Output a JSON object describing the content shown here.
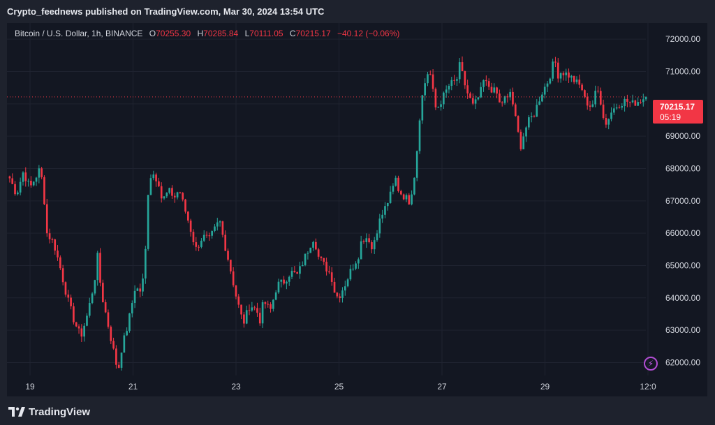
{
  "header": {
    "publisher_text": "Crypto_feednews published on TradingView.com, Mar 30, 2024 13:54 UTC"
  },
  "legend": {
    "symbol": "Bitcoin / U.S. Dollar, 1h, BINANCE",
    "open_label": "O",
    "open": "70255.30",
    "high_label": "H",
    "high": "70285.84",
    "low_label": "L",
    "low": "70111.05",
    "close_label": "C",
    "close": "70215.17",
    "change": "−40.12 (−0.06%)"
  },
  "last_price": {
    "price": "70215.17",
    "countdown": "05:19"
  },
  "brand": {
    "name": "TradingView",
    "logo_icon": "tradingview-logo-icon"
  },
  "colors": {
    "up": "#26a69a",
    "down": "#f23645",
    "background": "#131722",
    "grid": "#1f2330",
    "axis_text": "#d1d4dc"
  },
  "chart_data": {
    "type": "candlestick",
    "title": "Bitcoin / U.S. Dollar, 1h, BINANCE",
    "y_ticks": [
      "62000.00",
      "63000.00",
      "64000.00",
      "65000.00",
      "66000.00",
      "67000.00",
      "68000.00",
      "69000.00",
      "70000.00",
      "71000.00",
      "72000.00"
    ],
    "x_ticks": [
      "19",
      "21",
      "23",
      "25",
      "27",
      "29",
      "12:0"
    ],
    "ylim": [
      61600,
      72500
    ],
    "last_close": 70215.17,
    "grid": true,
    "series": [
      {
        "x": 0,
        "close": 67700
      },
      {
        "x": 2,
        "close": 67200
      },
      {
        "x": 4,
        "close": 67900
      },
      {
        "x": 6,
        "close": 67400
      },
      {
        "x": 8,
        "close": 67800
      },
      {
        "x": 9,
        "close": 68000
      },
      {
        "x": 10,
        "close": 67300
      },
      {
        "x": 11,
        "close": 66000
      },
      {
        "x": 13,
        "close": 65700
      },
      {
        "x": 15,
        "close": 64900
      },
      {
        "x": 17,
        "close": 64000
      },
      {
        "x": 19,
        "close": 63300
      },
      {
        "x": 21,
        "close": 62800
      },
      {
        "x": 23,
        "close": 63500
      },
      {
        "x": 25,
        "close": 64500
      },
      {
        "x": 26,
        "close": 65300
      },
      {
        "x": 27,
        "close": 64200
      },
      {
        "x": 29,
        "close": 63200
      },
      {
        "x": 31,
        "close": 62200
      },
      {
        "x": 32,
        "close": 61700
      },
      {
        "x": 33,
        "close": 62400
      },
      {
        "x": 35,
        "close": 63200
      },
      {
        "x": 37,
        "close": 64300
      },
      {
        "x": 39,
        "close": 64200
      },
      {
        "x": 40,
        "close": 65200
      },
      {
        "x": 41,
        "close": 67500
      },
      {
        "x": 42,
        "close": 67900
      },
      {
        "x": 44,
        "close": 67600
      },
      {
        "x": 45,
        "close": 67000
      },
      {
        "x": 47,
        "close": 67300
      },
      {
        "x": 49,
        "close": 67100
      },
      {
        "x": 50,
        "close": 67400
      },
      {
        "x": 51,
        "close": 67000
      },
      {
        "x": 53,
        "close": 66300
      },
      {
        "x": 55,
        "close": 65500
      },
      {
        "x": 57,
        "close": 65900
      },
      {
        "x": 59,
        "close": 65800
      },
      {
        "x": 61,
        "close": 66200
      },
      {
        "x": 62,
        "close": 66400
      },
      {
        "x": 63,
        "close": 65900
      },
      {
        "x": 65,
        "close": 65000
      },
      {
        "x": 67,
        "close": 64000
      },
      {
        "x": 69,
        "close": 63200
      },
      {
        "x": 71,
        "close": 63800
      },
      {
        "x": 73,
        "close": 63600
      },
      {
        "x": 74,
        "close": 63300
      },
      {
        "x": 75,
        "close": 63900
      },
      {
        "x": 77,
        "close": 63600
      },
      {
        "x": 79,
        "close": 64400
      },
      {
        "x": 81,
        "close": 64500
      },
      {
        "x": 83,
        "close": 64800
      },
      {
        "x": 85,
        "close": 64700
      },
      {
        "x": 87,
        "close": 65200
      },
      {
        "x": 89,
        "close": 65700
      },
      {
        "x": 90,
        "close": 65900
      },
      {
        "x": 91,
        "close": 65300
      },
      {
        "x": 93,
        "close": 65000
      },
      {
        "x": 95,
        "close": 64700
      },
      {
        "x": 96,
        "close": 64200
      },
      {
        "x": 97,
        "close": 64000
      },
      {
        "x": 99,
        "close": 64400
      },
      {
        "x": 101,
        "close": 64900
      },
      {
        "x": 103,
        "close": 65300
      },
      {
        "x": 104,
        "close": 65800
      },
      {
        "x": 106,
        "close": 65900
      },
      {
        "x": 107,
        "close": 65500
      },
      {
        "x": 109,
        "close": 66300
      },
      {
        "x": 111,
        "close": 66800
      },
      {
        "x": 113,
        "close": 67300
      },
      {
        "x": 114,
        "close": 67700
      },
      {
        "x": 115,
        "close": 67300
      },
      {
        "x": 117,
        "close": 67100
      },
      {
        "x": 118,
        "close": 67000
      },
      {
        "x": 119,
        "close": 67400
      },
      {
        "x": 120,
        "close": 68100
      },
      {
        "x": 121,
        "close": 69500
      },
      {
        "x": 122,
        "close": 70300
      },
      {
        "x": 123,
        "close": 70800
      },
      {
        "x": 124,
        "close": 71100
      },
      {
        "x": 125,
        "close": 70400
      },
      {
        "x": 126,
        "close": 69800
      },
      {
        "x": 128,
        "close": 70200
      },
      {
        "x": 130,
        "close": 70600
      },
      {
        "x": 132,
        "close": 70700
      },
      {
        "x": 133,
        "close": 71200
      },
      {
        "x": 134,
        "close": 70800
      },
      {
        "x": 135,
        "close": 70400
      },
      {
        "x": 137,
        "close": 69900
      },
      {
        "x": 139,
        "close": 70300
      },
      {
        "x": 140,
        "close": 70700
      },
      {
        "x": 142,
        "close": 70500
      },
      {
        "x": 144,
        "close": 70300
      },
      {
        "x": 145,
        "close": 69900
      },
      {
        "x": 146,
        "close": 70200
      },
      {
        "x": 147,
        "close": 70100
      },
      {
        "x": 148,
        "close": 70400
      },
      {
        "x": 149,
        "close": 69800
      },
      {
        "x": 150,
        "close": 69200
      },
      {
        "x": 151,
        "close": 68700
      },
      {
        "x": 152,
        "close": 69100
      },
      {
        "x": 153,
        "close": 69400
      },
      {
        "x": 155,
        "close": 69700
      },
      {
        "x": 157,
        "close": 70300
      },
      {
        "x": 159,
        "close": 70700
      },
      {
        "x": 160,
        "close": 71000
      },
      {
        "x": 161,
        "close": 71400
      },
      {
        "x": 162,
        "close": 70900
      },
      {
        "x": 163,
        "close": 71000
      },
      {
        "x": 165,
        "close": 70900
      },
      {
        "x": 167,
        "close": 70700
      },
      {
        "x": 169,
        "close": 70500
      },
      {
        "x": 170,
        "close": 70100
      },
      {
        "x": 172,
        "close": 69900
      },
      {
        "x": 173,
        "close": 70300
      },
      {
        "x": 174,
        "close": 70400
      },
      {
        "x": 175,
        "close": 69900
      },
      {
        "x": 176,
        "close": 69300
      },
      {
        "x": 177,
        "close": 69600
      },
      {
        "x": 178,
        "close": 69800
      },
      {
        "x": 180,
        "close": 70000
      },
      {
        "x": 182,
        "close": 70100
      },
      {
        "x": 184,
        "close": 70000
      },
      {
        "x": 186,
        "close": 70100
      },
      {
        "x": 188,
        "close": 70215
      }
    ]
  }
}
